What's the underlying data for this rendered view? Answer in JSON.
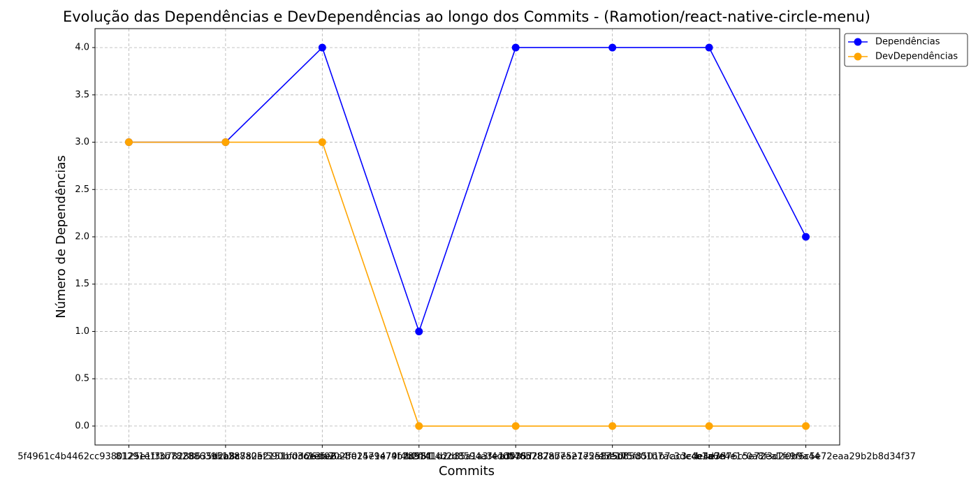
{
  "chart_data": {
    "type": "line",
    "title": "Evolução das Dependências e DevDependências ao longo dos Commits - (Ramotion/react-native-circle-menu)",
    "xlabel": "Commits",
    "ylabel": "Número de Dependências",
    "categories": [
      "5f4961c4b4462cc9380125e1f3b78288635b2a8c",
      "81291e1f3b7828863951288a05f590bf0d6e3f02",
      "dcb5a782e2151bd3c1e5e6a4f025e1479f4b2f51",
      "26aa7025e1479e74b2d58f14d2d8594a3e1d0357",
      "f89141d2d85a1a3f4d0578d287a7e5e17258d50f",
      "a3f4657828b7a27e5e175d85d01b7ac3de4e3d76",
      "e5e175f8501b7ac3cde4e3d76c5e72ea1f0b9a44",
      "b1a6e4e1c0a8f3d2e9f6c5e72eaa29b2b8d34f37"
    ],
    "series": [
      {
        "name": "Dependências",
        "color": "#0000ff",
        "values": [
          3,
          3,
          4,
          1,
          4,
          4,
          4,
          2
        ]
      },
      {
        "name": "DevDependências",
        "color": "#ffa500",
        "values": [
          3,
          3,
          3,
          0,
          0,
          0,
          0,
          0
        ]
      }
    ],
    "ylim": [
      -0.2,
      4.2
    ],
    "yticks": [
      {
        "value": 0,
        "label": "0.0"
      },
      {
        "value": 0.5,
        "label": "0.5"
      },
      {
        "value": 1,
        "label": "1.0"
      },
      {
        "value": 1.5,
        "label": "1.5"
      },
      {
        "value": 2,
        "label": "2.0"
      },
      {
        "value": 2.5,
        "label": "2.5"
      },
      {
        "value": 3,
        "label": "3.0"
      },
      {
        "value": 3.5,
        "label": "3.5"
      },
      {
        "value": 4,
        "label": "4.0"
      }
    ],
    "grid": true,
    "legend": "upper right outside"
  }
}
